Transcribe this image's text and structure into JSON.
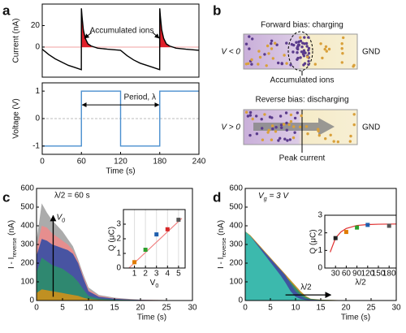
{
  "panel_labels": [
    "a",
    "b",
    "c",
    "d"
  ],
  "diagram": {
    "forward_title": "Forward bias: charging",
    "forward_voltage": "V < 0",
    "forward_ground": "GND",
    "accumulated_label": "Accumulated ions",
    "reverse_title": "Reverse bias: discharging",
    "reverse_voltage": "V > 0",
    "reverse_ground": "GND",
    "peak_label": "Peak current"
  },
  "chart_data": [
    {
      "type": "line",
      "ylabel": "Current (nA)",
      "xlim": [
        0,
        240
      ],
      "ylim": [
        -28,
        40
      ],
      "yticks": [
        0,
        20
      ],
      "x": [
        0,
        10,
        20,
        30,
        40,
        50,
        59.9,
        60,
        61,
        63,
        66,
        70,
        75,
        85,
        100,
        120,
        130,
        140,
        150,
        160,
        170,
        179.9,
        180,
        181,
        183,
        186,
        190,
        195,
        205,
        220,
        240
      ],
      "series": [
        {
          "color": "#000000",
          "values": [
            -2,
            -7,
            -11,
            -14,
            -17,
            -19,
            -21,
            36,
            28,
            16,
            8,
            3,
            1,
            -1,
            -2,
            -3,
            -8,
            -12,
            -15,
            -17,
            -19,
            -21,
            36,
            28,
            16,
            8,
            3,
            1,
            -1,
            -2,
            -3
          ]
        }
      ],
      "positive_fill": "#e0202a",
      "hline": 0,
      "hline_color": "#f2a0a0",
      "annotation": "Accumulated ions"
    },
    {
      "type": "line",
      "xlabel": "Time (s)",
      "ylabel": "Voltage (V)",
      "xlim": [
        0,
        240
      ],
      "ylim": [
        -1.3,
        1.3
      ],
      "xticks": [
        0,
        60,
        120,
        180,
        240
      ],
      "yticks": [
        -1,
        0,
        1
      ],
      "x": [
        0,
        60,
        60,
        120,
        120,
        180,
        180,
        240
      ],
      "series": [
        {
          "color": "#4a8fcf",
          "values": [
            -1,
            -1,
            1,
            1,
            -1,
            -1,
            1,
            1
          ]
        }
      ],
      "hline": 0,
      "hline_color": "#bbbbbb",
      "annotation": "Period, λ"
    },
    {
      "type": "area",
      "xlabel": "Time (s)",
      "ylabel": [
        "I - I",
        "reverse",
        " (nA)"
      ],
      "xlim": [
        0,
        30
      ],
      "ylim": [
        0,
        600
      ],
      "xticks": [
        0,
        5,
        10,
        15,
        20,
        25,
        30
      ],
      "yticks": [
        0,
        100,
        200,
        300,
        400,
        500,
        600
      ],
      "x": [
        0,
        1,
        2,
        3,
        4,
        5,
        6,
        7,
        8,
        9,
        10,
        12,
        15,
        18,
        20,
        25,
        30
      ],
      "series": [
        {
          "color": "#a6a6a6",
          "values": [
            320,
            520,
            470,
            430,
            400,
            370,
            330,
            290,
            220,
            140,
            70,
            30,
            15,
            8,
            5,
            2,
            0
          ]
        },
        {
          "color": "#e98c8c",
          "values": [
            280,
            400,
            390,
            360,
            340,
            320,
            300,
            270,
            210,
            130,
            60,
            25,
            12,
            6,
            4,
            2,
            0
          ]
        },
        {
          "color": "#3f51a3",
          "values": [
            240,
            330,
            320,
            300,
            290,
            280,
            270,
            250,
            200,
            120,
            50,
            20,
            10,
            5,
            3,
            1,
            0
          ]
        },
        {
          "color": "#2e8b6e",
          "values": [
            150,
            230,
            210,
            190,
            180,
            170,
            150,
            130,
            100,
            60,
            25,
            10,
            5,
            3,
            2,
            1,
            0
          ]
        },
        {
          "color": "#c8901e",
          "values": [
            40,
            60,
            55,
            50,
            45,
            40,
            35,
            30,
            25,
            15,
            8,
            4,
            2,
            1,
            1,
            0,
            0
          ]
        }
      ],
      "annotation": "λ/2 = 60 s",
      "arrow_label": [
        "V",
        "0"
      ]
    },
    {
      "type": "scatter",
      "inset": true,
      "grid": true,
      "xlabel": [
        "V",
        "0"
      ],
      "ylabel": "Q (μC)",
      "xlim": [
        0,
        5.6
      ],
      "ylim": [
        0,
        4
      ],
      "xticks": [
        1,
        2,
        3,
        4,
        5
      ],
      "yticks": [
        0,
        1,
        2,
        3
      ],
      "x": [
        1,
        2,
        3,
        4,
        5
      ],
      "values": [
        0.4,
        1.25,
        2.3,
        2.65,
        3.3
      ],
      "colors": [
        "#e07b00",
        "#2ca02c",
        "#1f5fae",
        "#d62728",
        "#555555"
      ],
      "fit": {
        "color": "#f08080",
        "x": [
          0.5,
          5.3
        ],
        "values": [
          0,
          3.4
        ]
      }
    },
    {
      "type": "area",
      "xlabel": "Time (s)",
      "ylabel": [
        "I - I",
        "reverse",
        " (nA)"
      ],
      "xlim": [
        0,
        30
      ],
      "ylim": [
        0,
        600
      ],
      "xticks": [
        0,
        5,
        10,
        15,
        20,
        25,
        30
      ],
      "yticks": [
        0,
        100,
        200,
        300,
        400,
        500,
        600
      ],
      "x": [
        0,
        1,
        2,
        3,
        4,
        5,
        6,
        7,
        8,
        9,
        10,
        11,
        12,
        13,
        15,
        20,
        30
      ],
      "series": [
        {
          "color": "#c8901e",
          "values": [
            370,
            350,
            320,
            290,
            260,
            230,
            200,
            170,
            140,
            110,
            80,
            50,
            25,
            10,
            5,
            1,
            0
          ]
        },
        {
          "color": "#2e8b6e",
          "values": [
            360,
            340,
            310,
            280,
            250,
            220,
            190,
            160,
            130,
            100,
            70,
            40,
            20,
            8,
            4,
            1,
            0
          ]
        },
        {
          "color": "#3f51a3",
          "values": [
            365,
            345,
            315,
            285,
            255,
            225,
            195,
            165,
            135,
            90,
            50,
            25,
            10,
            5,
            2,
            1,
            0
          ]
        },
        {
          "color": "#3cbfae",
          "values": [
            370,
            345,
            310,
            275,
            240,
            205,
            170,
            135,
            95,
            50,
            20,
            8,
            3,
            1,
            0,
            0,
            0
          ]
        }
      ],
      "annotation": [
        "V",
        "g",
        " = 3 V"
      ],
      "arrow_label": "λ/2"
    },
    {
      "type": "scatter",
      "inset": true,
      "xlabel": "λ/2",
      "ylabel": "Q (μC)",
      "xlim": [
        0,
        200
      ],
      "ylim": [
        0,
        3
      ],
      "xticks": [
        30,
        60,
        90,
        120,
        150,
        180
      ],
      "yticks": [
        0,
        1,
        2,
        3
      ],
      "x": [
        30,
        60,
        90,
        120,
        180
      ],
      "values": [
        1.7,
        2.05,
        2.3,
        2.45,
        2.4
      ],
      "colors": [
        "#222222",
        "#e07b00",
        "#2ca02c",
        "#1f5fae",
        "#555555"
      ],
      "fit": {
        "color": "#e03030",
        "x": [
          15,
          30,
          45,
          60,
          90,
          120,
          150,
          200
        ],
        "values": [
          0.9,
          1.7,
          2.05,
          2.25,
          2.42,
          2.47,
          2.49,
          2.5
        ]
      }
    }
  ]
}
